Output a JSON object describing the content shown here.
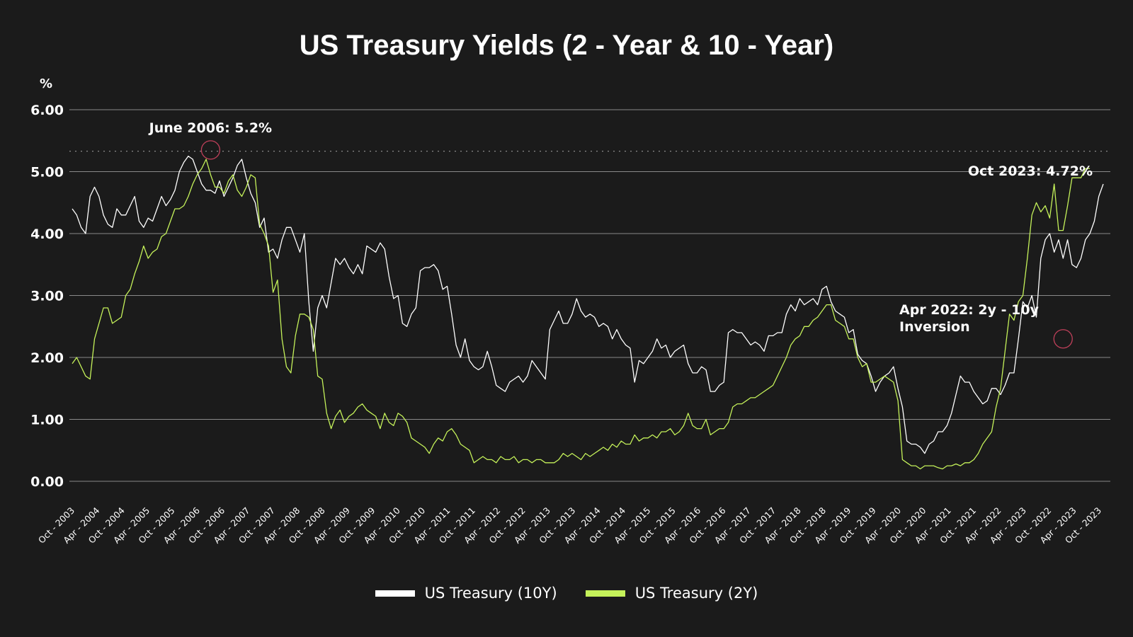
{
  "chart_data": {
    "type": "line",
    "title": "US Treasury Yields (2 - Year & 10 - Year)",
    "ylabel": "%",
    "xlabel": "",
    "ylim": [
      0,
      6
    ],
    "yticks": [
      "0.00",
      "1.00",
      "2.00",
      "3.00",
      "4.00",
      "5.00",
      "6.00"
    ],
    "x_start": "Oct 2003",
    "x_end": "Oct 2023",
    "x_tick_labels": [
      "Oct - 2003",
      "Apr - 2004",
      "Oct - 2004",
      "Apr - 2005",
      "Oct - 2005",
      "Apr - 2006",
      "Oct - 2006",
      "Apr - 2007",
      "Oct - 2007",
      "Apr - 2008",
      "Oct - 2008",
      "Apr - 2009",
      "Oct - 2009",
      "Apr - 2010",
      "Oct - 2010",
      "Apr - 2011",
      "Oct - 2011",
      "Apr - 2012",
      "Oct - 2012",
      "Apr - 2013",
      "Oct - 2013",
      "Apr - 2014",
      "Oct - 2014",
      "Apr - 2015",
      "Oct - 2015",
      "Apr - 2016",
      "Oct - 2016",
      "Apr - 2017",
      "Oct - 2017",
      "Apr - 2018",
      "Oct - 2018",
      "Apr - 2019",
      "Oct - 2019",
      "Apr - 2020",
      "Oct - 2020",
      "Apr - 2021",
      "Oct - 2021",
      "Apr - 2022",
      "Apr - 2023",
      "Oct - 2022",
      "Apr - 2023",
      "Oct - 2023"
    ],
    "grid": true,
    "legend_position": "bottom-center",
    "series": [
      {
        "name": "US Treasury (10Y)",
        "color": "#ffffff",
        "values": [
          4.4,
          4.3,
          4.1,
          4.0,
          4.6,
          4.75,
          4.6,
          4.3,
          4.15,
          4.1,
          4.4,
          4.3,
          4.3,
          4.45,
          4.6,
          4.2,
          4.1,
          4.25,
          4.2,
          4.4,
          4.6,
          4.45,
          4.55,
          4.7,
          5.0,
          5.15,
          5.25,
          5.2,
          5.0,
          4.8,
          4.7,
          4.7,
          4.65,
          4.85,
          4.6,
          4.75,
          4.9,
          5.1,
          5.2,
          4.9,
          4.65,
          4.5,
          4.1,
          4.25,
          3.7,
          3.75,
          3.6,
          3.9,
          4.1,
          4.1,
          3.9,
          3.7,
          4.0,
          2.9,
          2.1,
          2.8,
          3.0,
          2.8,
          3.2,
          3.6,
          3.5,
          3.6,
          3.45,
          3.35,
          3.5,
          3.35,
          3.8,
          3.75,
          3.7,
          3.85,
          3.75,
          3.3,
          2.95,
          3.0,
          2.55,
          2.5,
          2.7,
          2.8,
          3.4,
          3.45,
          3.45,
          3.5,
          3.4,
          3.1,
          3.15,
          2.7,
          2.2,
          2.0,
          2.3,
          1.95,
          1.85,
          1.8,
          1.85,
          2.1,
          1.85,
          1.55,
          1.5,
          1.45,
          1.6,
          1.65,
          1.7,
          1.6,
          1.7,
          1.95,
          1.85,
          1.75,
          1.65,
          2.45,
          2.6,
          2.75,
          2.55,
          2.55,
          2.7,
          2.95,
          2.75,
          2.65,
          2.7,
          2.65,
          2.5,
          2.55,
          2.5,
          2.3,
          2.45,
          2.3,
          2.2,
          2.15,
          1.6,
          1.95,
          1.9,
          2.0,
          2.1,
          2.3,
          2.15,
          2.2,
          2.0,
          2.1,
          2.15,
          2.2,
          1.9,
          1.75,
          1.75,
          1.85,
          1.8,
          1.45,
          1.45,
          1.55,
          1.6,
          2.4,
          2.45,
          2.4,
          2.4,
          2.3,
          2.2,
          2.25,
          2.2,
          2.1,
          2.35,
          2.35,
          2.4,
          2.4,
          2.7,
          2.85,
          2.75,
          2.95,
          2.85,
          2.9,
          2.95,
          2.85,
          3.1,
          3.15,
          2.9,
          2.75,
          2.7,
          2.65,
          2.4,
          2.45,
          2.05,
          1.95,
          1.9,
          1.7,
          1.45,
          1.6,
          1.7,
          1.75,
          1.85,
          1.5,
          1.2,
          0.65,
          0.6,
          0.6,
          0.55,
          0.45,
          0.6,
          0.65,
          0.8,
          0.8,
          0.9,
          1.1,
          1.4,
          1.7,
          1.6,
          1.6,
          1.45,
          1.35,
          1.25,
          1.3,
          1.5,
          1.5,
          1.4,
          1.55,
          1.75,
          1.75,
          2.3,
          2.9,
          2.8,
          3.0,
          2.65,
          3.6,
          3.9,
          4.0,
          3.7,
          3.9,
          3.6,
          3.9,
          3.5,
          3.45,
          3.6,
          3.9,
          4.0,
          4.2,
          4.6,
          4.8
        ]
      },
      {
        "name": "US Treasury (2Y)",
        "color": "#c5f25a",
        "values": [
          1.9,
          2.0,
          1.85,
          1.7,
          1.65,
          2.3,
          2.55,
          2.8,
          2.8,
          2.55,
          2.6,
          2.65,
          3.0,
          3.1,
          3.35,
          3.55,
          3.8,
          3.6,
          3.7,
          3.75,
          3.95,
          4.0,
          4.2,
          4.4,
          4.4,
          4.45,
          4.6,
          4.8,
          4.95,
          5.05,
          5.2,
          4.95,
          4.75,
          4.75,
          4.65,
          4.85,
          4.95,
          4.7,
          4.6,
          4.75,
          4.95,
          4.9,
          4.15,
          4.0,
          3.8,
          3.05,
          3.25,
          2.3,
          1.85,
          1.75,
          2.35,
          2.7,
          2.7,
          2.65,
          2.45,
          1.7,
          1.65,
          1.1,
          0.85,
          1.05,
          1.15,
          0.95,
          1.05,
          1.1,
          1.2,
          1.25,
          1.15,
          1.1,
          1.05,
          0.85,
          1.1,
          0.95,
          0.9,
          1.1,
          1.05,
          0.95,
          0.7,
          0.65,
          0.6,
          0.55,
          0.45,
          0.6,
          0.7,
          0.65,
          0.8,
          0.85,
          0.75,
          0.6,
          0.55,
          0.5,
          0.3,
          0.35,
          0.4,
          0.35,
          0.35,
          0.3,
          0.4,
          0.35,
          0.35,
          0.4,
          0.3,
          0.35,
          0.35,
          0.3,
          0.35,
          0.35,
          0.3,
          0.3,
          0.3,
          0.35,
          0.45,
          0.4,
          0.45,
          0.4,
          0.35,
          0.45,
          0.4,
          0.45,
          0.5,
          0.55,
          0.5,
          0.6,
          0.55,
          0.65,
          0.6,
          0.6,
          0.75,
          0.65,
          0.7,
          0.7,
          0.75,
          0.7,
          0.8,
          0.8,
          0.85,
          0.75,
          0.8,
          0.9,
          1.1,
          0.9,
          0.85,
          0.85,
          1.0,
          0.75,
          0.8,
          0.85,
          0.85,
          0.95,
          1.2,
          1.25,
          1.25,
          1.3,
          1.35,
          1.35,
          1.4,
          1.45,
          1.5,
          1.55,
          1.7,
          1.85,
          2.0,
          2.2,
          2.3,
          2.35,
          2.5,
          2.5,
          2.6,
          2.65,
          2.75,
          2.85,
          2.85,
          2.6,
          2.55,
          2.5,
          2.3,
          2.3,
          2.0,
          1.85,
          1.9,
          1.6,
          1.6,
          1.65,
          1.7,
          1.65,
          1.6,
          1.3,
          0.35,
          0.3,
          0.25,
          0.25,
          0.2,
          0.25,
          0.25,
          0.25,
          0.22,
          0.2,
          0.25,
          0.25,
          0.28,
          0.25,
          0.3,
          0.3,
          0.35,
          0.45,
          0.6,
          0.7,
          0.8,
          1.2,
          1.5,
          2.1,
          2.7,
          2.6,
          2.9,
          3.0,
          3.6,
          4.3,
          4.5,
          4.35,
          4.45,
          4.25,
          4.8,
          4.05,
          4.05,
          4.45,
          4.9,
          4.9,
          4.9,
          5.05,
          5.05
        ]
      }
    ],
    "annotations": [
      {
        "text": "June 2006: 5.2%",
        "x_index": 31,
        "y": 5.35
      },
      {
        "text": "Oct 2023: 4.72%",
        "x_index": 240,
        "y": 4.72
      },
      {
        "text": "Apr 2022: 2y - 10y",
        "text2": "Inversion",
        "x_index": 222,
        "y": 2.3
      }
    ],
    "reference_line": {
      "y": 5.33,
      "style": "dotted"
    }
  }
}
